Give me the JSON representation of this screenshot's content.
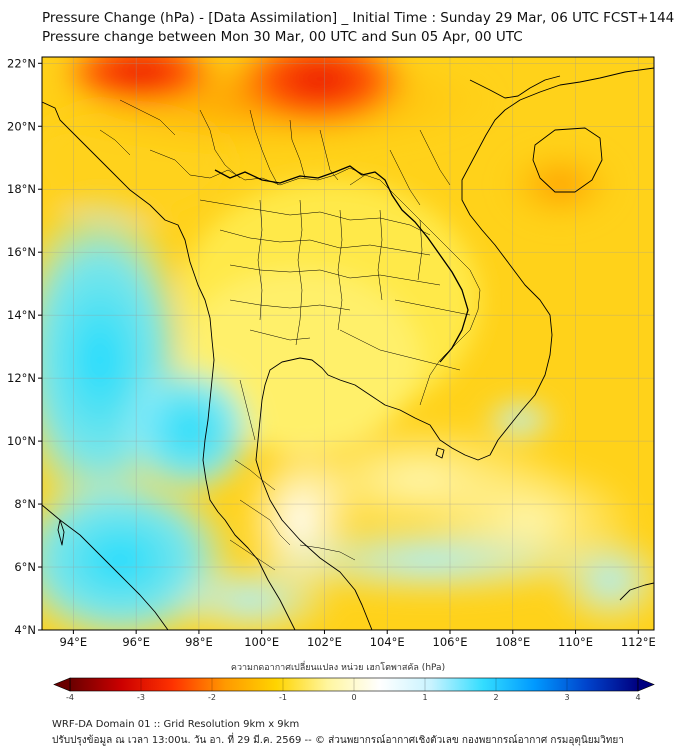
{
  "title": {
    "line1": "Pressure Change (hPa) - [Data Assimilation] _ Initial Time : Sunday 29 Mar, 06 UTC FCST+144",
    "line2": "Pressure change between Mon 30 Mar, 00 UTC and Sun 05 Apr, 00 UTC"
  },
  "map": {
    "lat_ticks": [
      "22°N",
      "20°N",
      "18°N",
      "16°N",
      "14°N",
      "12°N",
      "10°N",
      "8°N",
      "6°N",
      "4°N"
    ],
    "lon_ticks": [
      "94°E",
      "96°E",
      "98°E",
      "100°E",
      "102°E",
      "104°E",
      "106°E",
      "108°E",
      "110°E",
      "112°E"
    ],
    "lat_range": [
      4,
      22.2
    ],
    "lon_range": [
      93,
      112.5
    ]
  },
  "colorbar": {
    "label": "ความกดอากาศเปลี่ยนแปลง หน่วย เฮกโตพาสคัล (hPa)",
    "ticks": [
      "-4",
      "-3",
      "-2",
      "-1",
      "0",
      "1",
      "2",
      "3",
      "4"
    ],
    "range": [
      -4,
      4
    ],
    "colors": [
      "#6a0000",
      "#cc0000",
      "#ff3300",
      "#ff9900",
      "#ffd400",
      "#fff6a0",
      "#ffffff",
      "#c8f3ff",
      "#33ddff",
      "#0099ff",
      "#0044cc",
      "#000080"
    ]
  },
  "footer": {
    "line1": "WRF-DA Domain 01 :: Grid Resolution 9km x 9km",
    "line2": "ปรับปรุงข้อมูล ณ เวลา 13:00น. วัน อา. ที่ 29 มี.ค. 2569 -- © ส่วนพยากรณ์อากาศเชิงตัวเลข กองพยากรณ์อากาศ กรมอุตุนิยมวิทยา"
  }
}
